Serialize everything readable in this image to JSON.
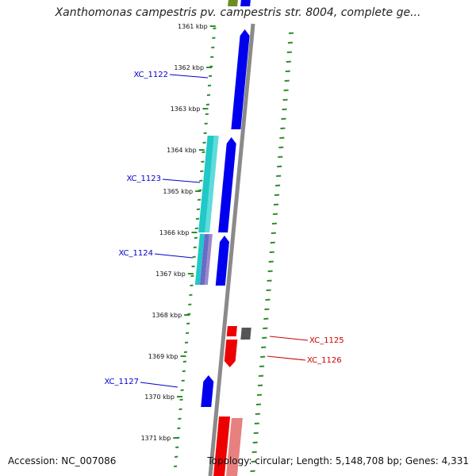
{
  "header": {
    "title": "Xanthomonas campestris pv. campestris str. 8004, complete ge..."
  },
  "footer": {
    "accession": "Accession: NC_007086",
    "summary": "Topology: circular; Length: 5,148,708 bp; Genes: 4,331"
  },
  "colors": {
    "backbone": "#8a8a8a",
    "forward_gene": "#0000ee",
    "cyan_gene": "#20c8c8",
    "reverse_gene": "#ee0000",
    "pink_gene": "#e88080",
    "gray_gene": "#555555",
    "olive_gene": "#6b8e23",
    "ruler_dots": "#2e8b2e",
    "label_blue": "#0000cc",
    "label_red": "#cc0000"
  },
  "ruler": {
    "ticks": [
      {
        "label": "1361 kbp"
      },
      {
        "label": "1362 kbp"
      },
      {
        "label": "1363 kbp"
      },
      {
        "label": "1364 kbp"
      },
      {
        "label": "1365 kbp"
      },
      {
        "label": "1366 kbp"
      },
      {
        "label": "1367 kbp"
      },
      {
        "label": "1368 kbp"
      },
      {
        "label": "1369 kbp"
      },
      {
        "label": "1370 kbp"
      },
      {
        "label": "1371 kbp"
      }
    ]
  },
  "genes": [
    {
      "name": "XC_1122",
      "color": "label_blue"
    },
    {
      "name": "XC_1123",
      "color": "label_blue"
    },
    {
      "name": "XC_1124",
      "color": "label_blue"
    },
    {
      "name": "XC_1125",
      "color": "label_red"
    },
    {
      "name": "XC_1126",
      "color": "label_red"
    },
    {
      "name": "XC_1127",
      "color": "label_blue"
    }
  ]
}
